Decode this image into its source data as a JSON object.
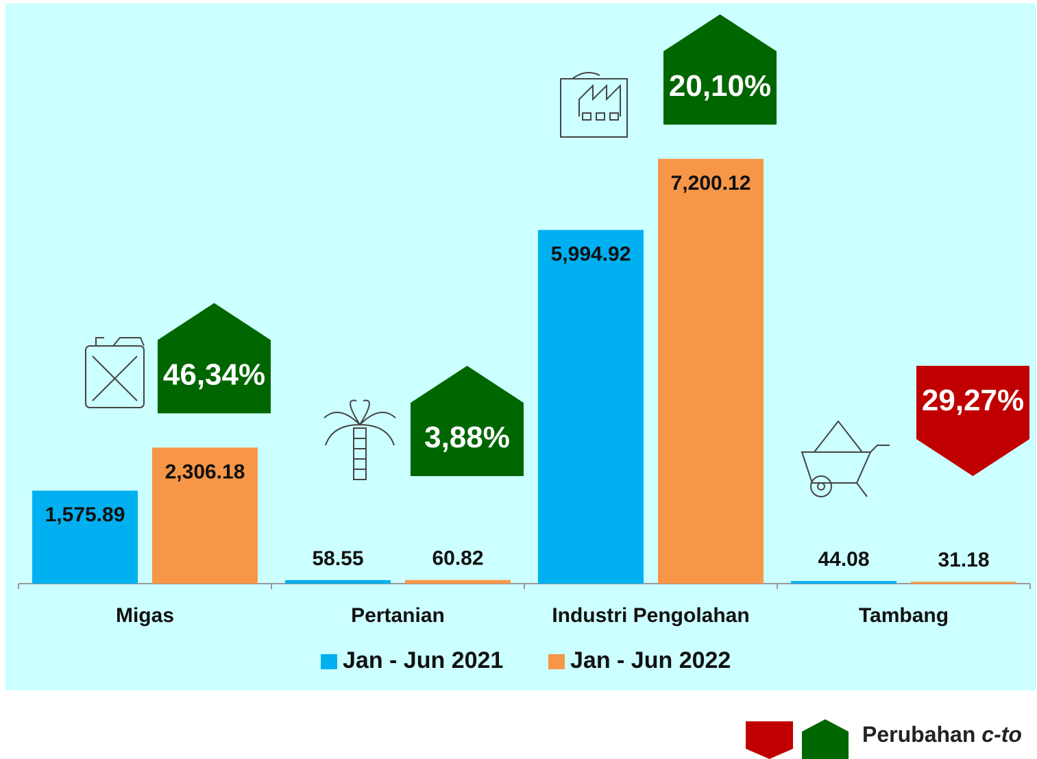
{
  "chart_data": {
    "type": "bar",
    "categories": [
      "Migas",
      "Pertanian",
      "Industri Pengolahan",
      "Tambang"
    ],
    "series": [
      {
        "name": "Jan - Jun 2021",
        "color": "#00b0f0",
        "values": [
          1575.89,
          58.55,
          5994.92,
          44.08
        ],
        "value_labels": [
          "1,575.89",
          "58.55",
          "5,994.92",
          "44.08"
        ]
      },
      {
        "name": "Jan - Jun 2022",
        "color": "#f79646",
        "values": [
          2306.18,
          60.82,
          7200.12,
          31.18
        ],
        "value_labels": [
          "2,306.18",
          "60.82",
          "7,200.12",
          "31.18"
        ]
      }
    ],
    "ylim": [
      0,
      8000
    ],
    "changes": [
      {
        "value": 46.34,
        "label": "46,34%",
        "direction": "up"
      },
      {
        "value": 3.88,
        "label": "3,88%",
        "direction": "up"
      },
      {
        "value": 20.1,
        "label": "20,10%",
        "direction": "up"
      },
      {
        "value": 29.27,
        "label": "29,27%",
        "direction": "down"
      }
    ],
    "change_colors": {
      "up": "#006600",
      "down": "#c00000"
    },
    "change_legend": "Perubahan",
    "change_legend_italic": "c-to"
  }
}
